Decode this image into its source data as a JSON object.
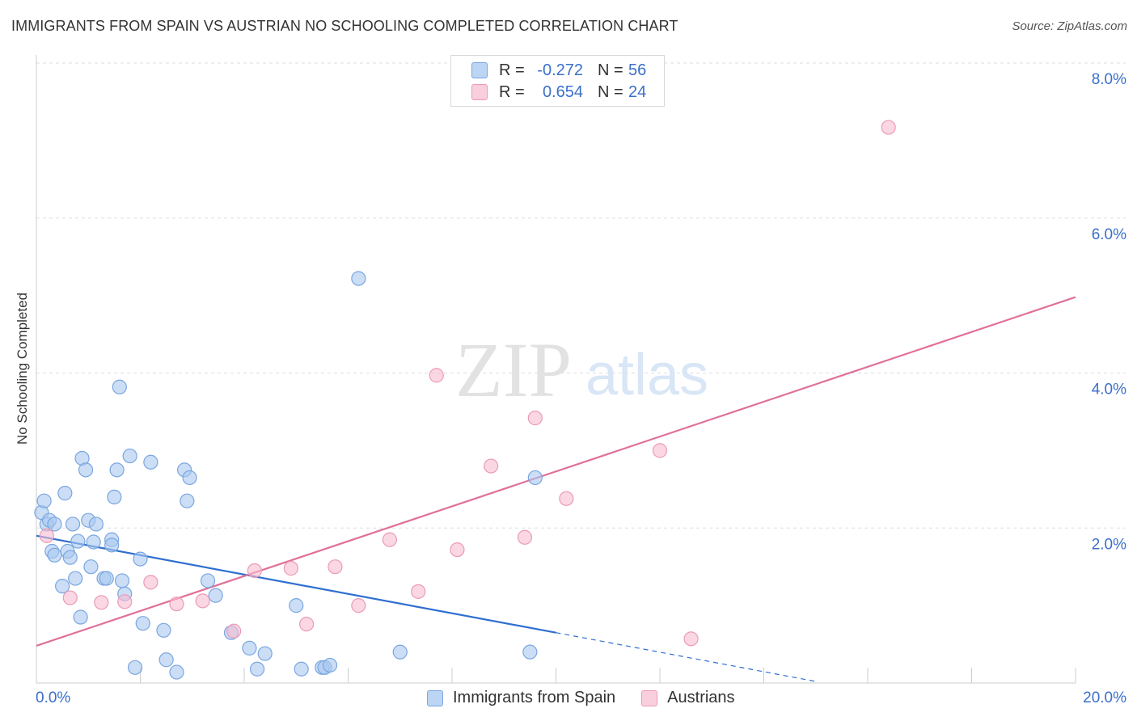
{
  "title": "IMMIGRANTS FROM SPAIN VS AUSTRIAN NO SCHOOLING COMPLETED CORRELATION CHART",
  "source": "Source: ZipAtlas.com",
  "watermark": {
    "zip": "ZIP",
    "atlas": "atlas"
  },
  "colors": {
    "blue_fill": "#a9c8f0",
    "blue_stroke": "#7aa6e0",
    "blue_line": "#2f6fd0",
    "pink_fill": "#f6bdd0",
    "pink_stroke": "#ec9ab5",
    "pink_line": "#e0709a",
    "tick_text": "#3b6fc9",
    "grid": "#dddddd"
  },
  "legend": {
    "rows": [
      {
        "r_label": "R =",
        "r_value": "-0.272",
        "n_label": "N =",
        "n_value": "56"
      },
      {
        "r_label": "R =",
        "r_value": "0.654",
        "n_label": "N =",
        "n_value": "24"
      }
    ]
  },
  "chart_data": {
    "type": "scatter",
    "xlabel": "",
    "ylabel": "No Schooling Completed",
    "xlim": [
      0,
      20
    ],
    "ylim": [
      0,
      8
    ],
    "x_tick_labels": [
      "0.0%",
      "20.0%"
    ],
    "y_ticks": [
      2,
      4,
      6,
      8
    ],
    "y_tick_labels": [
      "2.0%",
      "4.0%",
      "6.0%",
      "8.0%"
    ],
    "grid": "horizontal dashed",
    "series": [
      {
        "name": "Immigrants from Spain",
        "color": "#a9c8f0",
        "points": [
          [
            0.1,
            2.2
          ],
          [
            0.15,
            2.35
          ],
          [
            0.2,
            2.05
          ],
          [
            0.25,
            2.1
          ],
          [
            0.3,
            1.7
          ],
          [
            0.35,
            2.05
          ],
          [
            0.35,
            1.65
          ],
          [
            0.5,
            1.25
          ],
          [
            0.55,
            2.45
          ],
          [
            0.6,
            1.7
          ],
          [
            0.65,
            1.62
          ],
          [
            0.7,
            2.05
          ],
          [
            0.75,
            1.35
          ],
          [
            0.8,
            1.83
          ],
          [
            0.85,
            0.85
          ],
          [
            0.88,
            2.9
          ],
          [
            0.95,
            2.75
          ],
          [
            1.0,
            2.1
          ],
          [
            1.05,
            1.5
          ],
          [
            1.1,
            1.82
          ],
          [
            1.15,
            2.05
          ],
          [
            1.3,
            1.35
          ],
          [
            1.35,
            1.35
          ],
          [
            1.45,
            1.85
          ],
          [
            1.45,
            1.78
          ],
          [
            1.5,
            2.4
          ],
          [
            1.55,
            2.75
          ],
          [
            1.6,
            3.82
          ],
          [
            1.65,
            1.32
          ],
          [
            1.7,
            1.15
          ],
          [
            1.8,
            2.93
          ],
          [
            1.9,
            0.2
          ],
          [
            2.0,
            1.6
          ],
          [
            2.05,
            0.77
          ],
          [
            2.2,
            2.85
          ],
          [
            2.45,
            0.68
          ],
          [
            2.5,
            0.3
          ],
          [
            2.7,
            0.14
          ],
          [
            2.85,
            2.75
          ],
          [
            2.9,
            2.35
          ],
          [
            2.95,
            2.65
          ],
          [
            3.3,
            1.32
          ],
          [
            3.45,
            1.13
          ],
          [
            3.75,
            0.65
          ],
          [
            4.1,
            0.45
          ],
          [
            4.25,
            0.18
          ],
          [
            4.4,
            0.38
          ],
          [
            5.0,
            1.0
          ],
          [
            5.1,
            0.18
          ],
          [
            5.5,
            0.2
          ],
          [
            5.55,
            0.2
          ],
          [
            5.65,
            0.23
          ],
          [
            6.2,
            5.22
          ],
          [
            7.0,
            0.4
          ],
          [
            9.5,
            0.4
          ],
          [
            9.6,
            2.65
          ]
        ],
        "trend": {
          "x0": 0,
          "y0": 1.9,
          "x1": 10,
          "y1": 0.65,
          "dashed_to_x": 15,
          "dashed_to_y": 0.02
        }
      },
      {
        "name": "Austrians",
        "color": "#f6bdd0",
        "points": [
          [
            0.2,
            1.9
          ],
          [
            0.65,
            1.1
          ],
          [
            1.25,
            1.04
          ],
          [
            1.7,
            1.05
          ],
          [
            2.2,
            1.3
          ],
          [
            2.7,
            1.02
          ],
          [
            3.2,
            1.06
          ],
          [
            3.8,
            0.67
          ],
          [
            4.2,
            1.45
          ],
          [
            4.9,
            1.48
          ],
          [
            5.2,
            0.76
          ],
          [
            5.75,
            1.5
          ],
          [
            6.2,
            1.0
          ],
          [
            6.8,
            1.85
          ],
          [
            7.35,
            1.18
          ],
          [
            7.7,
            3.97
          ],
          [
            8.1,
            1.72
          ],
          [
            8.75,
            2.8
          ],
          [
            9.4,
            1.88
          ],
          [
            9.6,
            3.42
          ],
          [
            10.2,
            2.38
          ],
          [
            12.0,
            3.0
          ],
          [
            12.6,
            0.57
          ],
          [
            16.4,
            7.17
          ]
        ],
        "trend": {
          "x0": 0,
          "y0": 0.48,
          "x1": 20,
          "y1": 4.98
        }
      }
    ]
  },
  "bottom_legend": [
    {
      "label": "Immigrants from Spain"
    },
    {
      "label": "Austrians"
    }
  ]
}
